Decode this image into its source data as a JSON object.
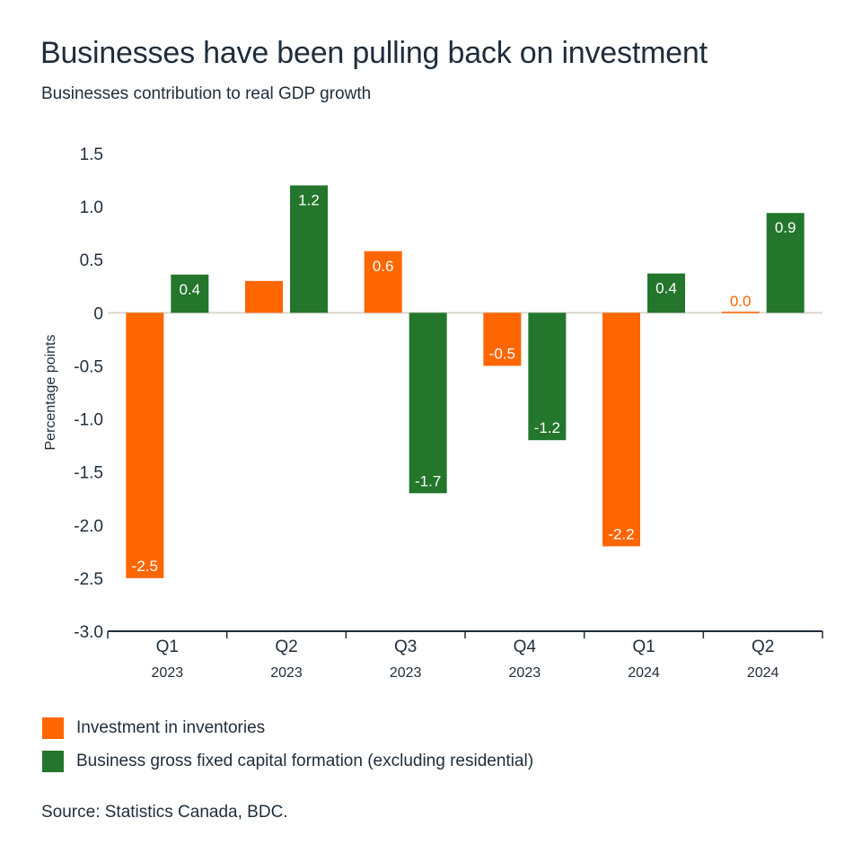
{
  "title": "Businesses have been pulling back on investment",
  "subtitle": "Businesses contribution to real GDP growth",
  "source": "Source: Statistics Canada, BDC.",
  "colors": {
    "inventories": "#FF6600",
    "capital": "#23762B",
    "text": "#1e2d3b"
  },
  "chart_data": {
    "type": "bar",
    "ylabel": "Percentage points",
    "ylim": [
      -3.0,
      1.5
    ],
    "yticks": [
      "1.5",
      "1.0",
      "0.5",
      "0",
      "-0.5",
      "-1.0",
      "-1.5",
      "-2.0",
      "-2.5",
      "-3.0"
    ],
    "ytick_values": [
      1.5,
      1.0,
      0.5,
      0,
      -0.5,
      -1.0,
      -1.5,
      -2.0,
      -2.5,
      -3.0
    ],
    "categories": [
      {
        "quarter": "Q1",
        "year": "2023"
      },
      {
        "quarter": "Q2",
        "year": "2023"
      },
      {
        "quarter": "Q3",
        "year": "2023"
      },
      {
        "quarter": "Q4",
        "year": "2023"
      },
      {
        "quarter": "Q1",
        "year": "2024"
      },
      {
        "quarter": "Q2",
        "year": "2024"
      }
    ],
    "legend_position": "bottom",
    "grid": false,
    "series": [
      {
        "name": "Investment in inventories",
        "values": [
          -2.5,
          0.3,
          0.58,
          -0.5,
          -2.2,
          0.01
        ],
        "labels": [
          "-2.5",
          null,
          "0.6",
          "-0.5",
          "-2.2",
          "0.0"
        ]
      },
      {
        "name": "Business gross fixed capital formation (excluding residential)",
        "values": [
          0.36,
          1.2,
          -1.7,
          -1.2,
          0.37,
          0.94
        ],
        "labels": [
          "0.4",
          "1.2",
          "-1.7",
          "-1.2",
          "0.4",
          "0.9"
        ]
      }
    ]
  }
}
